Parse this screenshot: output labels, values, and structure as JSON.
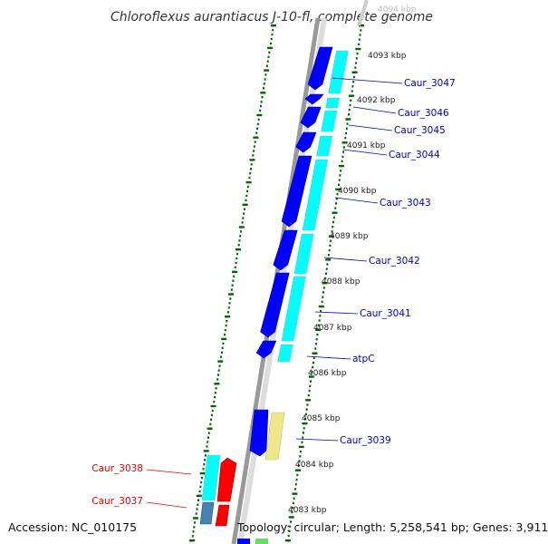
{
  "title": "Chloroflexus aurantiacus J-10-fl, complete genome",
  "accession": "Accession: NC_010175",
  "summary": "Topology: circular; Length: 5,258,541 bp; Genes: 3,911",
  "colors": {
    "forward_label": "#0000cc",
    "reverse_label": "#ee0000",
    "cds": "#0000ff",
    "gene_cyan": "#00ffff",
    "gene_yellow": "#f0e68c",
    "gene_red": "#ff0000",
    "gene_steelblue": "#4682b4",
    "tick_green": "#006400",
    "backbone": "#888888"
  },
  "kbp_labels": [
    "4094 kbp",
    "4093 kbp",
    "4092 kbp",
    "4091 kbp",
    "4090 kbp",
    "4089 kbp",
    "4088 kbp",
    "4087 kbp",
    "4086 kbp",
    "4085 kbp",
    "4084 kbp",
    "4083 kbp"
  ],
  "forward_genes": [
    "Caur_3047",
    "Caur_3046",
    "Caur_3045",
    "Caur_3044",
    "Caur_3043",
    "Caur_3042",
    "Caur_3041",
    "atpC",
    "Caur_3039"
  ],
  "reverse_genes": [
    "Caur_3038",
    "Caur_3037"
  ]
}
